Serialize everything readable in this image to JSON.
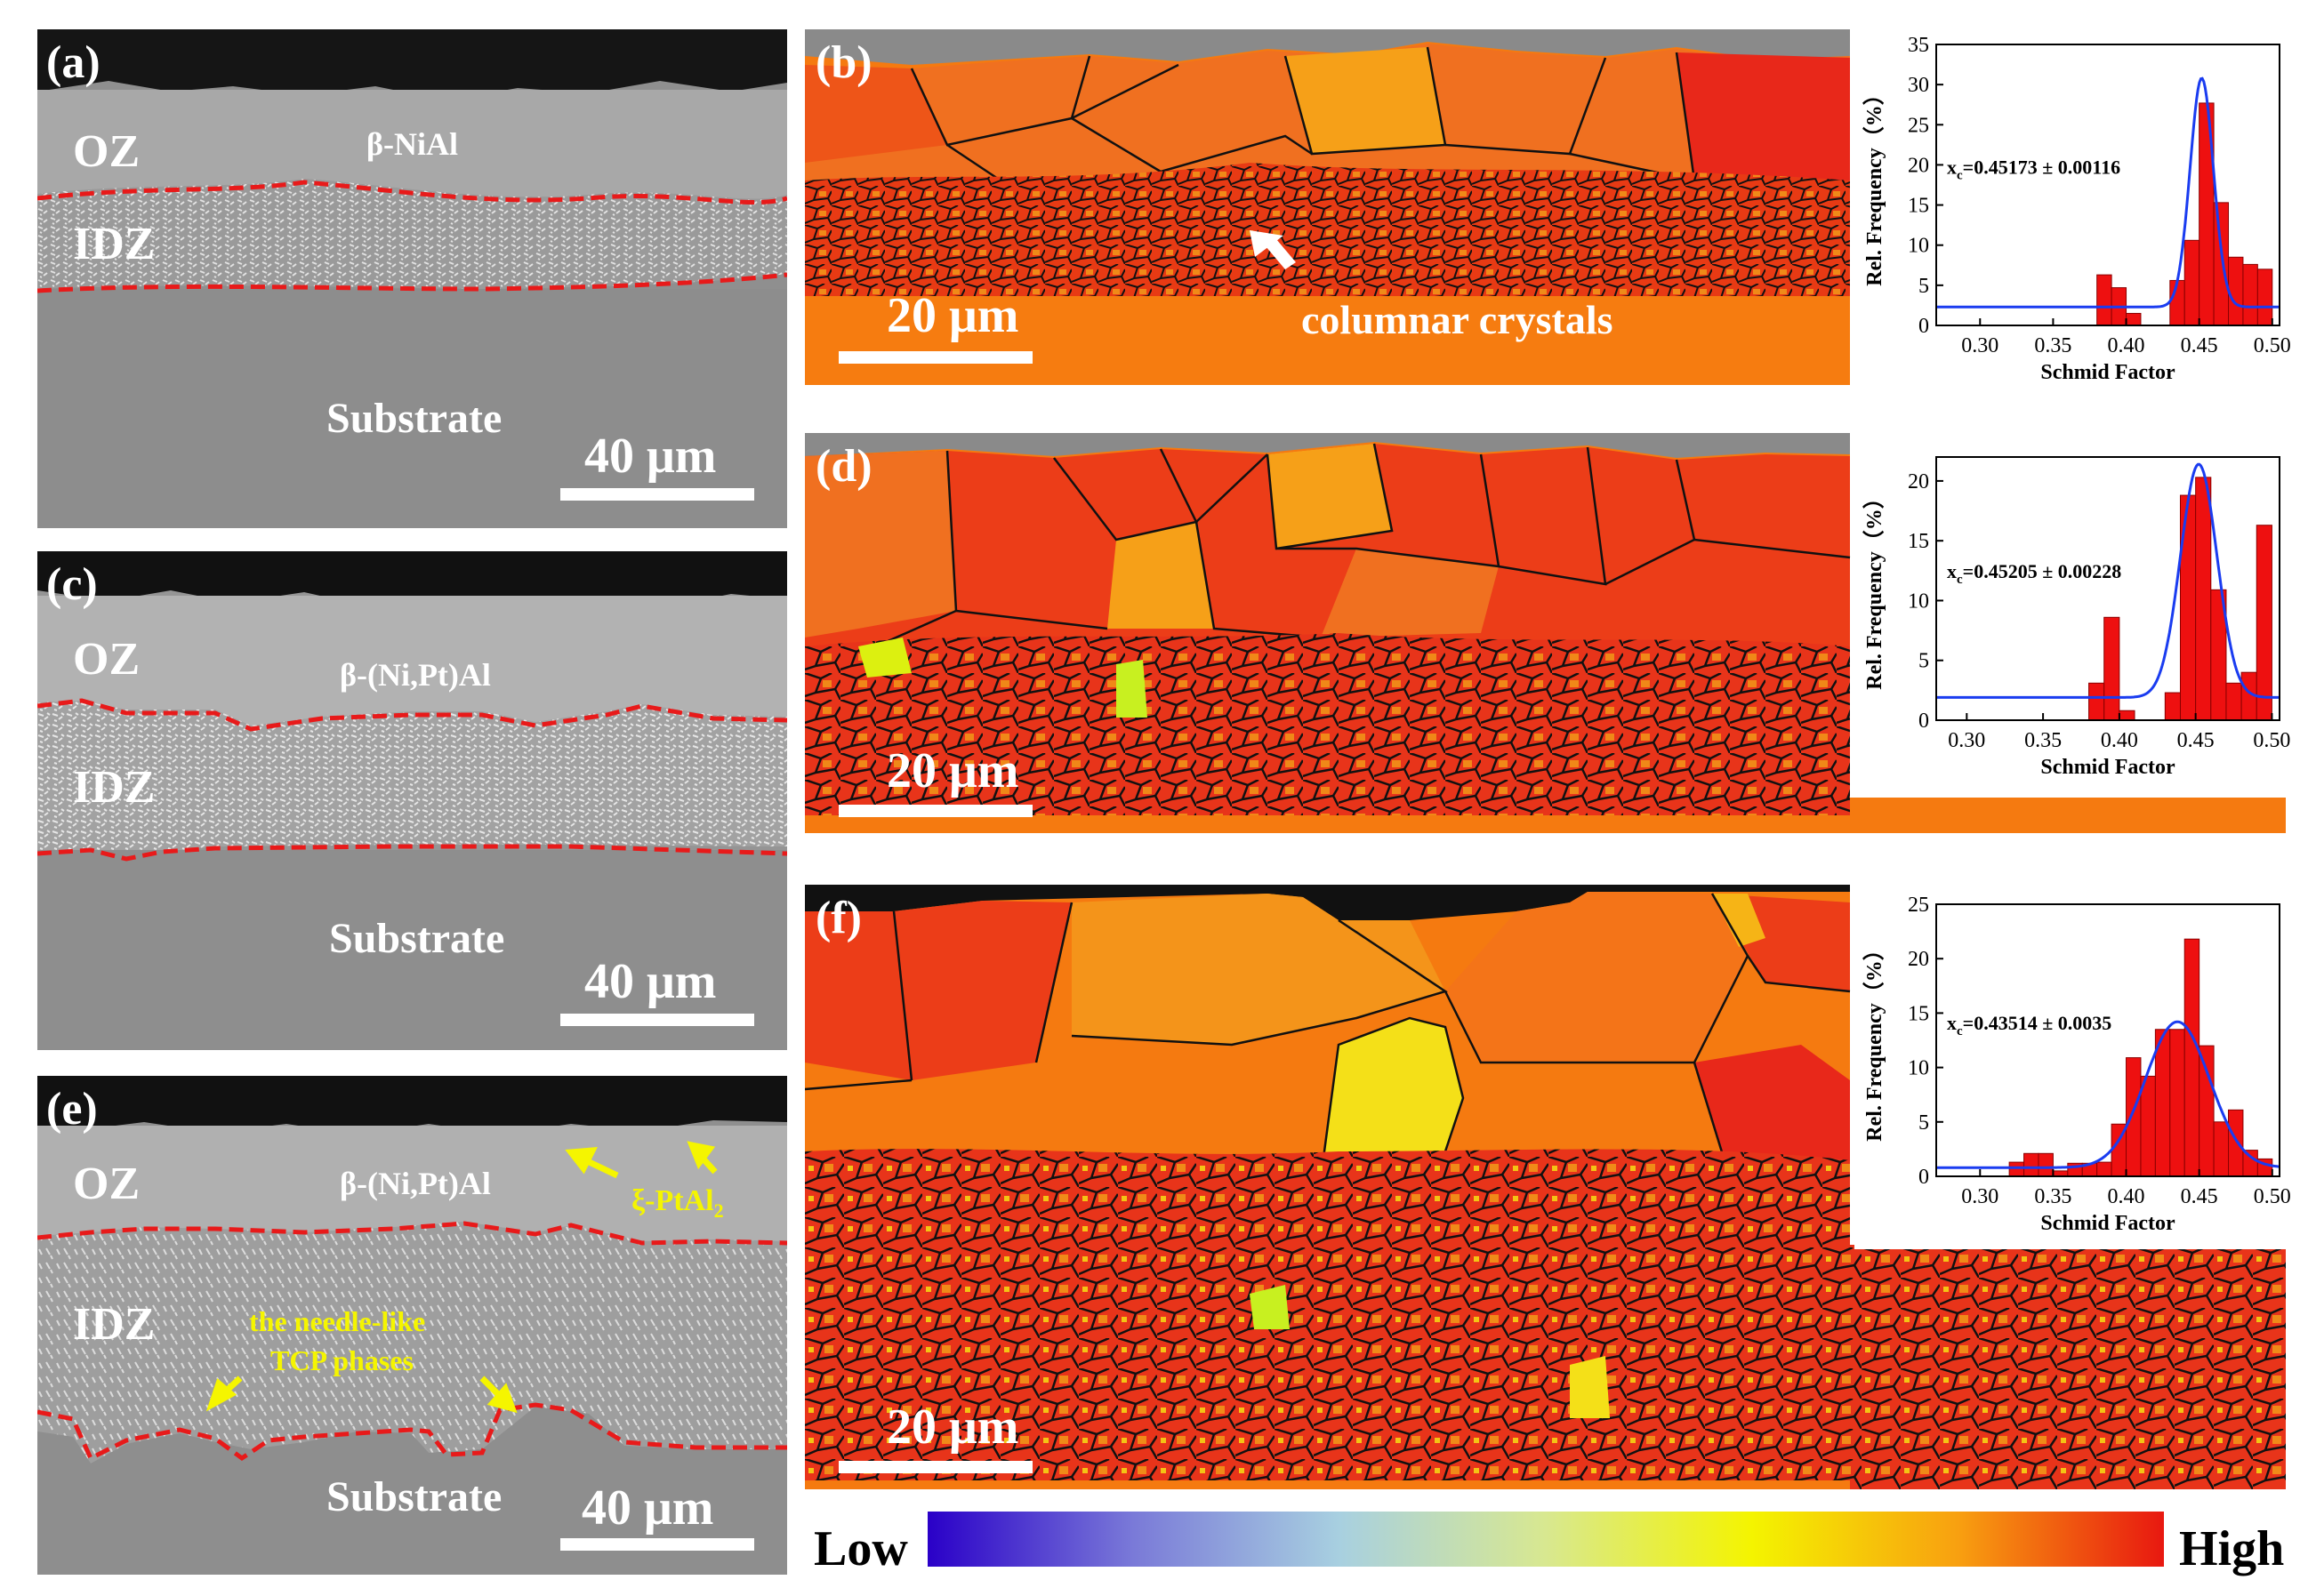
{
  "panels": {
    "a": {
      "label": "(a)",
      "oz": "OZ",
      "idz": "IDZ",
      "phase": "β-NiAl",
      "substrate": "Substrate",
      "scale": "40 μm"
    },
    "c": {
      "label": "(c)",
      "oz": "OZ",
      "idz": "IDZ",
      "phase": "β-(Ni,Pt)Al",
      "substrate": "Substrate",
      "scale": "40 μm"
    },
    "e": {
      "label": "(e)",
      "oz": "OZ",
      "idz": "IDZ",
      "phase": "β-(Ni,Pt)Al",
      "substrate": "Substrate",
      "scale": "40 μm",
      "xi_phase": "ξ-PtAl",
      "xi_sub": "2",
      "tcp_line1": "the needle-like",
      "tcp_line2": "TCP phases"
    },
    "b": {
      "label": "(b)",
      "scale": "20 μm",
      "annotation": "columnar crystals"
    },
    "d": {
      "label": "(d)",
      "scale": "20 μm"
    },
    "f": {
      "label": "(f)",
      "scale": "20 μm"
    }
  },
  "colorbar": {
    "low": "Low",
    "high": "High",
    "colors": [
      "#2a00c8",
      "#7a7ad8",
      "#a8d0e0",
      "#d8e890",
      "#f4f400",
      "#f8a010",
      "#e81810"
    ]
  },
  "chart_data": [
    {
      "id": "b",
      "type": "bar",
      "title": "",
      "xlabel": "Schmid Factor",
      "ylabel": "Rel. Frequency（%）",
      "xlim": [
        0.27,
        0.505
      ],
      "ylim": [
        0,
        35
      ],
      "xticks": [
        "0.30",
        "0.35",
        "0.40",
        "0.45",
        "0.50"
      ],
      "yticks": [
        "0",
        "5",
        "10",
        "15",
        "20",
        "25",
        "30",
        "35"
      ],
      "bin_width": 0.01,
      "bins": [
        {
          "x": 0.385,
          "y": 6.3
        },
        {
          "x": 0.395,
          "y": 4.7
        },
        {
          "x": 0.405,
          "y": 1.5
        },
        {
          "x": 0.435,
          "y": 5.6
        },
        {
          "x": 0.445,
          "y": 10.6
        },
        {
          "x": 0.455,
          "y": 27.7
        },
        {
          "x": 0.465,
          "y": 15.3
        },
        {
          "x": 0.475,
          "y": 8.5
        },
        {
          "x": 0.485,
          "y": 7.6
        },
        {
          "x": 0.495,
          "y": 7.0
        }
      ],
      "fit": {
        "type": "gaussian",
        "xc": 0.45173,
        "w": 0.008,
        "amp": 28.5,
        "base": 2.3
      },
      "annotation": "x",
      "annotation_sub": "c",
      "annotation_value": "=0.45173 ± 0.00116"
    },
    {
      "id": "d",
      "type": "bar",
      "title": "",
      "xlabel": "Schmid Factor",
      "ylabel": "Rel. Frequency（%）",
      "xlim": [
        0.28,
        0.505
      ],
      "ylim": [
        0,
        22
      ],
      "xticks": [
        "0.30",
        "0.35",
        "0.40",
        "0.45",
        "0.50"
      ],
      "yticks": [
        "0",
        "5",
        "10",
        "15",
        "20"
      ],
      "bin_width": 0.01,
      "bins": [
        {
          "x": 0.385,
          "y": 3.1
        },
        {
          "x": 0.395,
          "y": 8.6
        },
        {
          "x": 0.405,
          "y": 0.8
        },
        {
          "x": 0.435,
          "y": 2.3
        },
        {
          "x": 0.445,
          "y": 18.8
        },
        {
          "x": 0.455,
          "y": 20.3
        },
        {
          "x": 0.465,
          "y": 10.9
        },
        {
          "x": 0.475,
          "y": 3.1
        },
        {
          "x": 0.485,
          "y": 4.0
        },
        {
          "x": 0.495,
          "y": 16.3
        }
      ],
      "fit": {
        "type": "gaussian",
        "xc": 0.45205,
        "w": 0.012,
        "amp": 19.5,
        "base": 1.9
      },
      "annotation": "x",
      "annotation_sub": "c",
      "annotation_value": "=0.45205 ± 0.00228"
    },
    {
      "id": "f",
      "type": "bar",
      "title": "",
      "xlabel": "Schmid Factor",
      "ylabel": "Rel. Frequency（%）",
      "xlim": [
        0.27,
        0.505
      ],
      "ylim": [
        0,
        25
      ],
      "xticks": [
        "0.30",
        "0.35",
        "0.40",
        "0.45",
        "0.50"
      ],
      "yticks": [
        "0",
        "5",
        "10",
        "15",
        "20",
        "25"
      ],
      "bin_width": 0.01,
      "bins": [
        {
          "x": 0.325,
          "y": 1.3
        },
        {
          "x": 0.335,
          "y": 2.1
        },
        {
          "x": 0.345,
          "y": 2.1
        },
        {
          "x": 0.355,
          "y": 0.5
        },
        {
          "x": 0.365,
          "y": 1.2
        },
        {
          "x": 0.375,
          "y": 1.2
        },
        {
          "x": 0.385,
          "y": 1.3
        },
        {
          "x": 0.395,
          "y": 4.8
        },
        {
          "x": 0.405,
          "y": 10.9
        },
        {
          "x": 0.415,
          "y": 9.2
        },
        {
          "x": 0.425,
          "y": 13.5
        },
        {
          "x": 0.435,
          "y": 13.5
        },
        {
          "x": 0.445,
          "y": 21.8
        },
        {
          "x": 0.455,
          "y": 12.0
        },
        {
          "x": 0.465,
          "y": 5.0
        },
        {
          "x": 0.475,
          "y": 6.1
        },
        {
          "x": 0.485,
          "y": 2.4
        },
        {
          "x": 0.495,
          "y": 1.6
        }
      ],
      "fit": {
        "type": "gaussian",
        "xc": 0.43514,
        "w": 0.022,
        "amp": 13.4,
        "base": 0.8
      },
      "annotation": "x",
      "annotation_sub": "c",
      "annotation_value": "=0.43514 ± 0.0035"
    }
  ]
}
